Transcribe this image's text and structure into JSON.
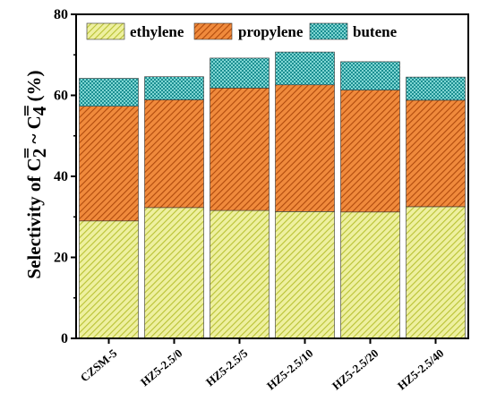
{
  "chart_data": {
    "type": "bar",
    "stacked": true,
    "categories": [
      "CZSM-5",
      "HZ5-2.5/0",
      "HZ5-2.5/5",
      "HZ5-2.5/10",
      "HZ5-2.5/20",
      "HZ5-2.5/40"
    ],
    "series": [
      {
        "name": "ethylene",
        "values": [
          29.0,
          32.3,
          31.6,
          31.3,
          31.2,
          32.5
        ],
        "color": "#d6df5a"
      },
      {
        "name": "propylene",
        "values": [
          28.3,
          26.6,
          30.2,
          31.3,
          30.1,
          26.3
        ],
        "color": "#e4621a"
      },
      {
        "name": "butene",
        "values": [
          6.9,
          5.7,
          7.4,
          8.1,
          7.0,
          5.7
        ],
        "color": "#2bb0b0"
      }
    ],
    "ylabel": "Selectivity of C2= ~ C4= (%)",
    "ylim": [
      0,
      80
    ],
    "yticks": [
      0,
      20,
      40,
      60,
      80
    ],
    "legend_position": "top",
    "grid": false
  }
}
